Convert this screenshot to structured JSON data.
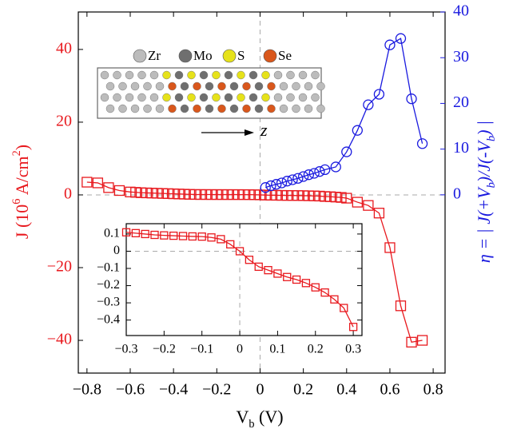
{
  "chart_data": [
    {
      "type": "line",
      "xlabel": [
        "V",
        "b",
        " (V)"
      ],
      "ylabel": [
        "J (10",
        "6",
        " A/cm",
        "2",
        ")"
      ],
      "y2label": [
        "η = | J(+V",
        "b",
        ")/J(-V",
        "b",
        ") |"
      ],
      "xlim": [
        -0.84,
        0.855
      ],
      "ylim": [
        -49,
        50.3
      ],
      "y2lim": [
        -39,
        40
      ],
      "xticks": [
        {
          "value": -0.8,
          "label": "−0.8"
        },
        {
          "value": -0.6,
          "label": "−0.6"
        },
        {
          "value": -0.4,
          "label": "−0.4"
        },
        {
          "value": -0.2,
          "label": "−0.2"
        },
        0,
        0.2,
        0.4,
        0.6,
        0.8
      ],
      "yticks": [
        {
          "value": -40,
          "label": "−40"
        },
        {
          "value": -20,
          "label": "−20"
        },
        0,
        20,
        40
      ],
      "y2ticks": [
        0,
        10,
        20,
        30,
        40
      ],
      "series": [
        {
          "color": "#e8191e",
          "marker": "square",
          "x": [
            -0.8,
            -0.75,
            -0.7,
            -0.65,
            -0.6,
            -0.575,
            -0.55,
            -0.525,
            -0.5,
            -0.475,
            -0.45,
            -0.425,
            -0.4,
            -0.375,
            -0.35,
            -0.325,
            -0.3,
            -0.275,
            -0.25,
            -0.225,
            -0.2,
            -0.175,
            -0.15,
            -0.125,
            -0.1,
            -0.075,
            -0.05,
            -0.025,
            0,
            0.025,
            0.05,
            0.075,
            0.1,
            0.125,
            0.15,
            0.175,
            0.2,
            0.225,
            0.25,
            0.275,
            0.3,
            0.325,
            0.35,
            0.375,
            0.4,
            0.45,
            0.5,
            0.55,
            0.6,
            0.65,
            0.7,
            0.75
          ],
          "values": [
            3.5,
            3.3,
            2.0,
            1.2,
            0.8,
            0.7,
            0.6,
            0.55,
            0.5,
            0.45,
            0.4,
            0.35,
            0.3,
            0.25,
            0.2,
            0.15,
            0.11,
            0.105,
            0.1,
            0.095,
            0.092,
            0.09,
            0.088,
            0.086,
            0.085,
            0.08,
            0.07,
            0.04,
            0.0,
            -0.05,
            -0.09,
            -0.11,
            -0.13,
            -0.15,
            -0.165,
            -0.185,
            -0.21,
            -0.24,
            -0.28,
            -0.33,
            -0.44,
            -0.5,
            -0.6,
            -0.7,
            -0.9,
            -2,
            -2.9,
            -5,
            -14.5,
            -30.5,
            -40.5,
            -40
          ]
        },
        {
          "color": "#1a1adf",
          "marker": "circle",
          "axis": "y2",
          "x": [
            0.025,
            0.05,
            0.075,
            0.1,
            0.125,
            0.15,
            0.175,
            0.2,
            0.225,
            0.25,
            0.275,
            0.3,
            0.35,
            0.4,
            0.45,
            0.5,
            0.55,
            0.6,
            0.65,
            0.7,
            0.75
          ],
          "values": [
            1.6,
            2.0,
            2.3,
            2.6,
            3.0,
            3.3,
            3.6,
            4.0,
            4.4,
            4.7,
            5.1,
            5.5,
            6.1,
            9.4,
            14.1,
            19.7,
            22,
            32.8,
            34.2,
            21,
            11.2
          ]
        }
      ],
      "annotations": {
        "atoms": [
          "Zr",
          "Mo",
          "S",
          "Se"
        ],
        "direction": "z"
      }
    },
    {
      "type": "line",
      "xlim": [
        -0.3,
        0.323
      ],
      "ylim": [
        -0.49,
        0.16
      ],
      "xticks": [
        {
          "value": -0.3,
          "label": "−0.3"
        },
        {
          "value": -0.2,
          "label": "−0.2"
        },
        {
          "value": -0.1,
          "label": "−0.1"
        },
        0,
        0.1,
        0.2,
        0.3
      ],
      "yticks": [
        0.1,
        0,
        {
          "value": -0.1,
          "label": "−0.1"
        },
        {
          "value": -0.2,
          "label": "−0.2"
        },
        {
          "value": -0.3,
          "label": "−0.3"
        },
        {
          "value": -0.4,
          "label": "−0.4"
        }
      ],
      "series": [
        {
          "color": "#e8191e",
          "marker": "square",
          "x": [
            -0.3,
            -0.275,
            -0.25,
            -0.225,
            -0.2,
            -0.175,
            -0.15,
            -0.125,
            -0.1,
            -0.075,
            -0.05,
            -0.025,
            0,
            0.025,
            0.05,
            0.075,
            0.1,
            0.125,
            0.15,
            0.175,
            0.2,
            0.225,
            0.25,
            0.275,
            0.3
          ],
          "values": [
            0.11,
            0.105,
            0.1,
            0.095,
            0.092,
            0.09,
            0.088,
            0.086,
            0.085,
            0.08,
            0.07,
            0.04,
            0.0,
            -0.05,
            -0.09,
            -0.11,
            -0.13,
            -0.15,
            -0.165,
            -0.185,
            -0.21,
            -0.24,
            -0.28,
            -0.33,
            -0.44
          ]
        }
      ]
    }
  ]
}
